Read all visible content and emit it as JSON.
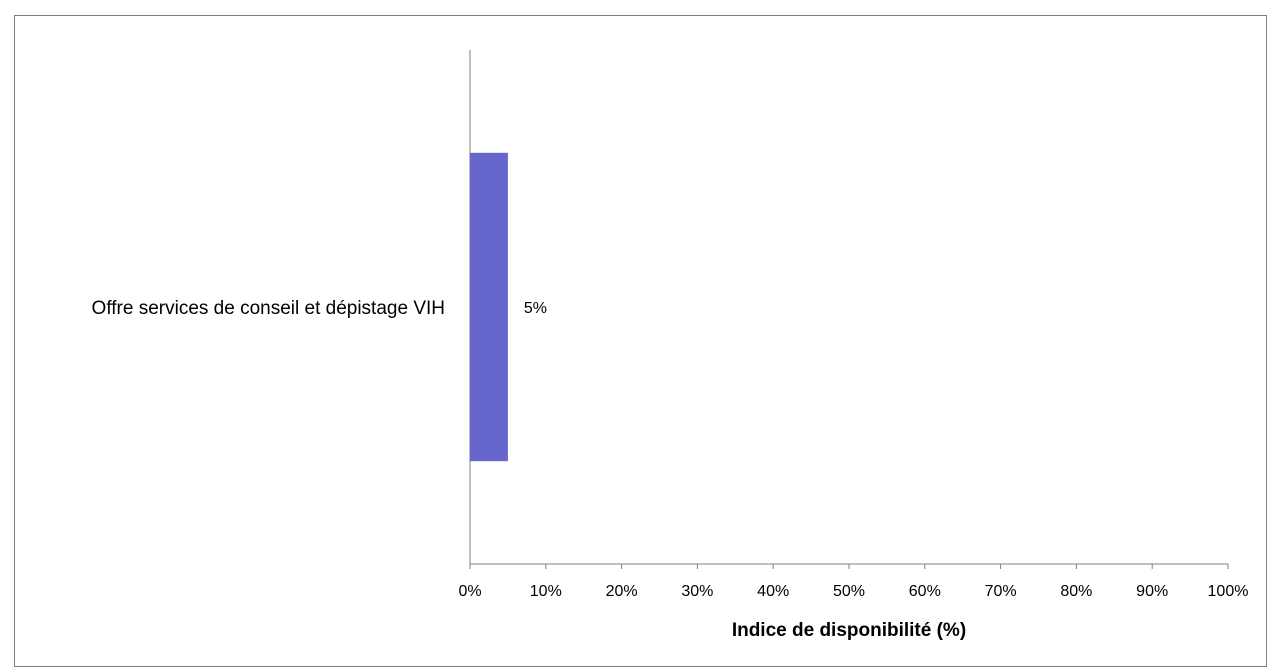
{
  "chart_data": {
    "type": "bar",
    "orientation": "horizontal",
    "title": "",
    "categories": [
      "Offre services de conseil et dépistage VIH"
    ],
    "series": [
      {
        "values": [
          5
        ],
        "color": "#6666cc"
      }
    ],
    "data_labels": [
      "5%"
    ],
    "xlabel": "Indice de disponibilité (%)",
    "ylabel": "",
    "xlim": [
      0,
      100
    ],
    "x_ticks": [
      "0%",
      "10%",
      "20%",
      "30%",
      "40%",
      "50%",
      "60%",
      "70%",
      "80%",
      "90%",
      "100%"
    ],
    "grid": false,
    "legend": "none"
  }
}
